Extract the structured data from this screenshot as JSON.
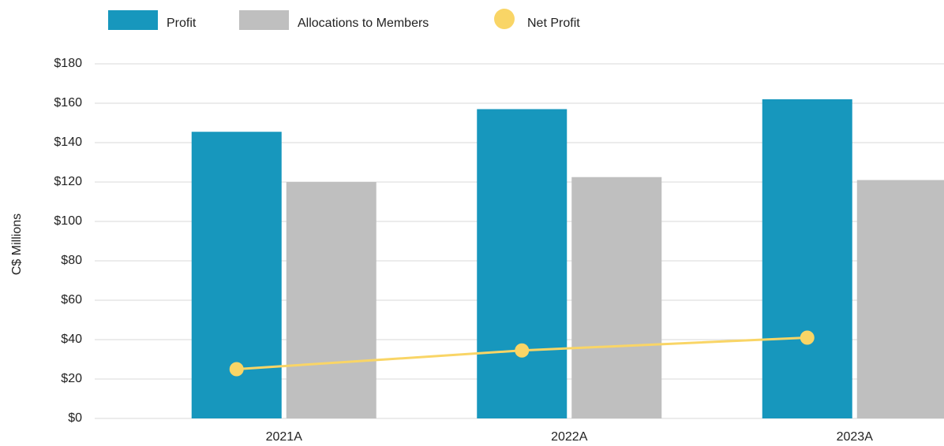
{
  "chart_data": {
    "type": "bar",
    "y_label": "C$ Millions",
    "categories": [
      "2021A",
      "2022A",
      "2023A"
    ],
    "series": [
      {
        "name": "Profit",
        "type": "bar",
        "color": "#1797bd",
        "values": [
          145.5,
          157,
          162
        ]
      },
      {
        "name": "Allocations to Members",
        "type": "bar",
        "color": "#bfbfbf",
        "values": [
          120,
          122.5,
          121
        ]
      },
      {
        "name": "Net Profit",
        "type": "line",
        "color": "#f9d566",
        "values": [
          25,
          34.5,
          41
        ]
      }
    ],
    "ylim": [
      0,
      180
    ],
    "yticks": [
      {
        "value": 0,
        "label": "$0"
      },
      {
        "value": 20,
        "label": "$20"
      },
      {
        "value": 40,
        "label": "$40"
      },
      {
        "value": 60,
        "label": "$60"
      },
      {
        "value": 80,
        "label": "$80"
      },
      {
        "value": 100,
        "label": "$100"
      },
      {
        "value": 120,
        "label": "$120"
      },
      {
        "value": 140,
        "label": "$140"
      },
      {
        "value": 160,
        "label": "$160"
      },
      {
        "value": 180,
        "label": "$180"
      }
    ],
    "grid": true
  }
}
